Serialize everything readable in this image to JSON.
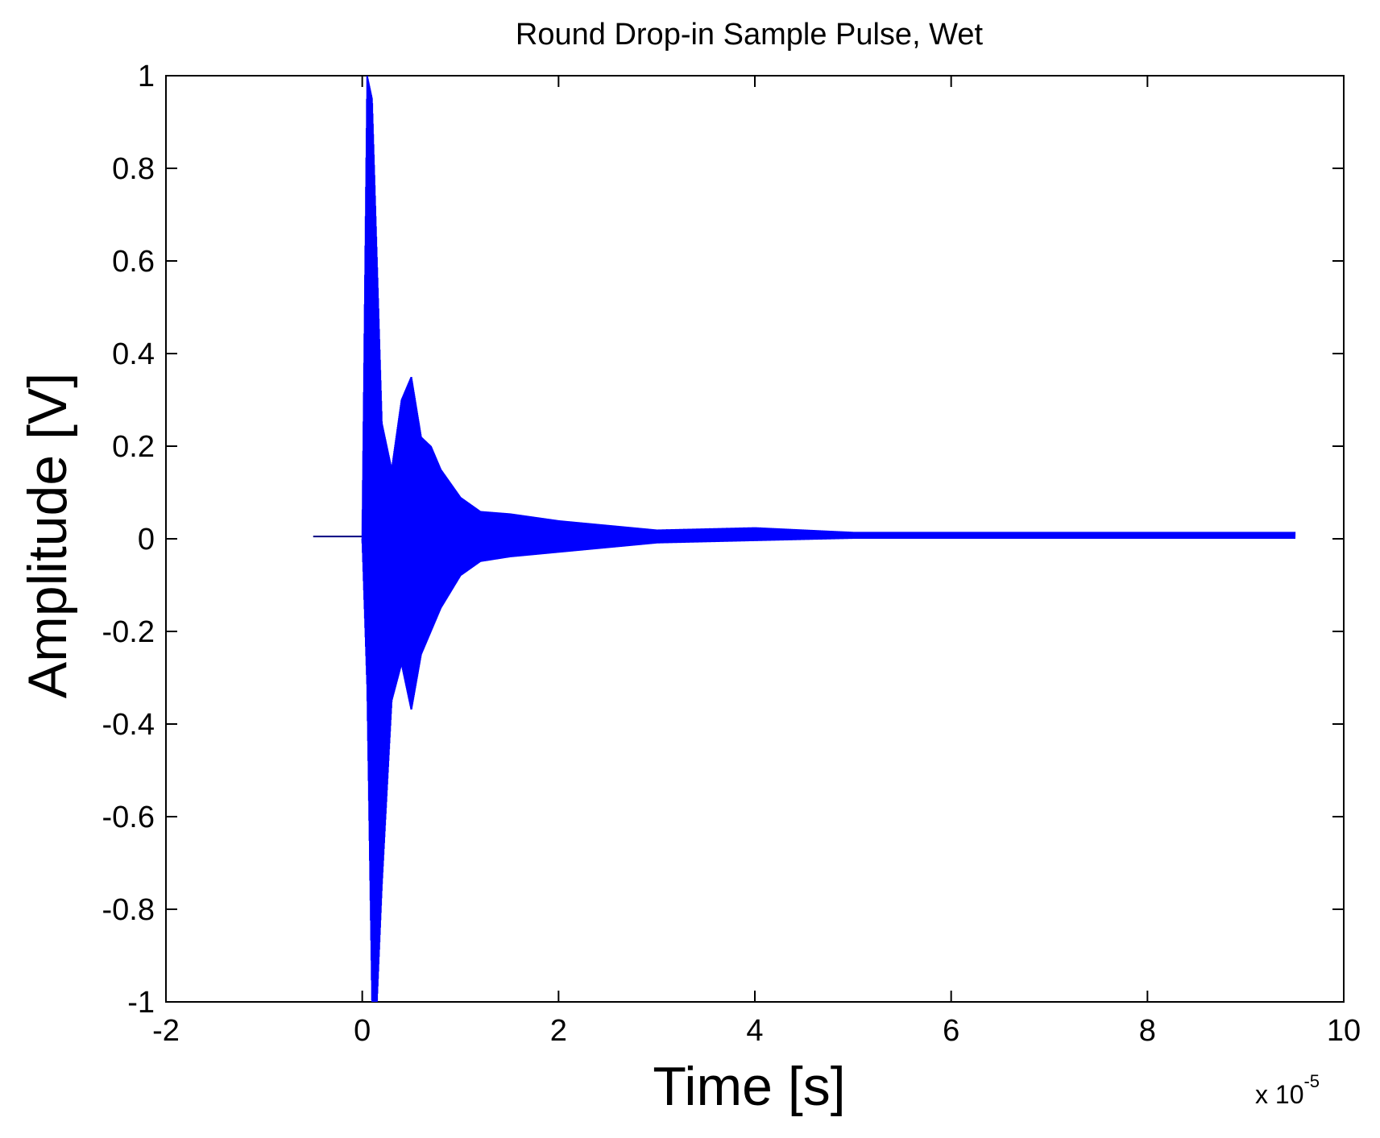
{
  "chart_data": {
    "type": "line",
    "title": "Round Drop-in Sample Pulse, Wet",
    "xlabel": "Time [s]",
    "ylabel": "Amplitude [V]",
    "x_exponent_base": "x 10",
    "x_exponent_power": "-5",
    "xlim": [
      -2,
      10
    ],
    "ylim": [
      -1,
      1
    ],
    "xticks": [
      "-2",
      "0",
      "2",
      "4",
      "6",
      "8",
      "10"
    ],
    "yticks": [
      "-1",
      "-0.8",
      "-0.6",
      "-0.4",
      "-0.2",
      "0",
      "0.2",
      "0.4",
      "0.6",
      "0.8",
      "1"
    ],
    "grid": false,
    "line_color": "#0000ff",
    "baseline_color": "#000080",
    "series": [
      {
        "x_range": [
          -0.5,
          9.5
        ],
        "envelope": [
          {
            "x": -0.5,
            "upper": 0.0,
            "lower": 0.0
          },
          {
            "x": 0.0,
            "upper": 0.0,
            "lower": 0.0
          },
          {
            "x": 0.05,
            "upper": 1.0,
            "lower": -0.32
          },
          {
            "x": 0.1,
            "upper": 0.95,
            "lower": -1.0
          },
          {
            "x": 0.15,
            "upper": 0.6,
            "lower": -1.0
          },
          {
            "x": 0.2,
            "upper": 0.25,
            "lower": -0.75
          },
          {
            "x": 0.3,
            "upper": 0.15,
            "lower": -0.35
          },
          {
            "x": 0.4,
            "upper": 0.3,
            "lower": -0.27
          },
          {
            "x": 0.5,
            "upper": 0.35,
            "lower": -0.37
          },
          {
            "x": 0.6,
            "upper": 0.22,
            "lower": -0.25
          },
          {
            "x": 0.7,
            "upper": 0.2,
            "lower": -0.2
          },
          {
            "x": 0.8,
            "upper": 0.15,
            "lower": -0.15
          },
          {
            "x": 1.0,
            "upper": 0.09,
            "lower": -0.08
          },
          {
            "x": 1.2,
            "upper": 0.06,
            "lower": -0.05
          },
          {
            "x": 1.5,
            "upper": 0.055,
            "lower": -0.04
          },
          {
            "x": 2.0,
            "upper": 0.04,
            "lower": -0.03
          },
          {
            "x": 2.5,
            "upper": 0.03,
            "lower": -0.02
          },
          {
            "x": 3.0,
            "upper": 0.02,
            "lower": -0.01
          },
          {
            "x": 4.0,
            "upper": 0.025,
            "lower": -0.005
          },
          {
            "x": 5.0,
            "upper": 0.015,
            "lower": 0.0
          },
          {
            "x": 6.0,
            "upper": 0.015,
            "lower": 0.0
          },
          {
            "x": 7.0,
            "upper": 0.015,
            "lower": 0.0
          },
          {
            "x": 8.0,
            "upper": 0.015,
            "lower": 0.0
          },
          {
            "x": 9.5,
            "upper": 0.015,
            "lower": 0.0
          }
        ]
      }
    ]
  }
}
